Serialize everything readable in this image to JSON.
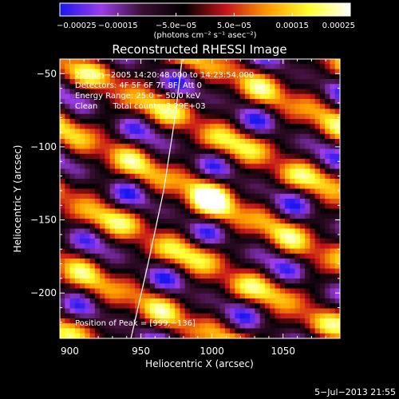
{
  "chart_data": {
    "type": "heatmap",
    "title": "Reconstructed RHESSI Image",
    "xlabel": "Heliocentric X (arcsec)",
    "ylabel": "Heliocentric Y (arcsec)",
    "xlim": [
      893,
      1090
    ],
    "ylim": [
      -231,
      -40
    ],
    "xticks": [
      900,
      950,
      1000,
      1050
    ],
    "xtick_labels": [
      "900",
      "950",
      "1000",
      "1050"
    ],
    "yticks": [
      -50,
      -100,
      -150,
      -200
    ],
    "ytick_labels": [
      "−50",
      "−100",
      "−150",
      "−200"
    ],
    "colorbar": {
      "range": [
        -0.00025,
        0.00025
      ],
      "tick_values": [
        -0.00025,
        -0.00015,
        -5e-05,
        5e-05,
        0.00015,
        0.00025
      ],
      "tick_labels": [
        "−0.00025",
        "−0.00015",
        "−5.0e−05",
        "5.0e−05",
        "0.00015",
        "0.00025"
      ],
      "unit_label": "(photons cm⁻² s⁻¹ asec⁻²)",
      "colormap": [
        "#1a16f0",
        "#9c3ce8",
        "#3a0e30",
        "#000000",
        "#c4131b",
        "#ff9a00",
        "#ffff30",
        "#ffffff"
      ]
    },
    "annotations": {
      "time": "21−Jan−2005 14:20:48.000 to 14:23:54.000",
      "detectors": "Detectors: 4F 5F 6F 7F 8F, Att 0",
      "energy": "Energy Range: 25.0 − 50.0 keV",
      "clean": "Clean      Total counts: 2.29E+03",
      "peak": "Position of Peak = [999,−136]"
    },
    "peak_position": [
      999,
      -136
    ],
    "limb_points": [
      [
        943,
        -231
      ],
      [
        955,
        -180
      ],
      [
        966,
        -130
      ],
      [
        974,
        -80
      ],
      [
        979,
        -40
      ]
    ]
  },
  "footer": {
    "date": "5−Jul−2013 21:55"
  }
}
